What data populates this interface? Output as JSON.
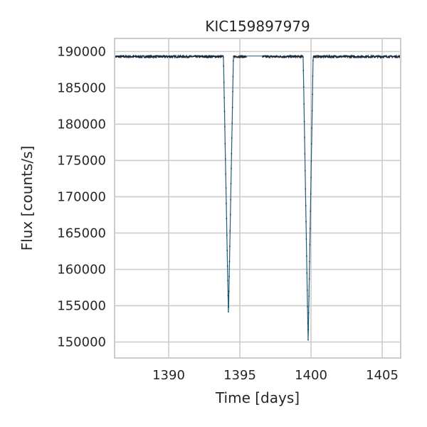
{
  "chart_data": {
    "type": "line",
    "title": "KIC159897979",
    "xlabel": "Time [days]",
    "ylabel": "Flux [counts/s]",
    "xlim": [
      1386.2,
      1406.3
    ],
    "ylim": [
      147800,
      191800
    ],
    "xticks": [
      1390,
      1395,
      1400,
      1405
    ],
    "yticks": [
      150000,
      155000,
      160000,
      165000,
      170000,
      175000,
      180000,
      185000,
      190000
    ],
    "grid": true,
    "colors": {
      "line": "#1f5f7a",
      "dark": "#1c2a3a",
      "grid": "#cccccc",
      "frame": "#cccccc"
    },
    "baseline_flux": 189300,
    "gaps": [
      [
        1395.45,
        1396.6
      ]
    ],
    "dips": [
      {
        "center": 1394.2,
        "min_flux": 153500,
        "width": 0.35
      },
      {
        "center": 1399.8,
        "min_flux": 149800,
        "width": 0.35
      }
    ]
  }
}
